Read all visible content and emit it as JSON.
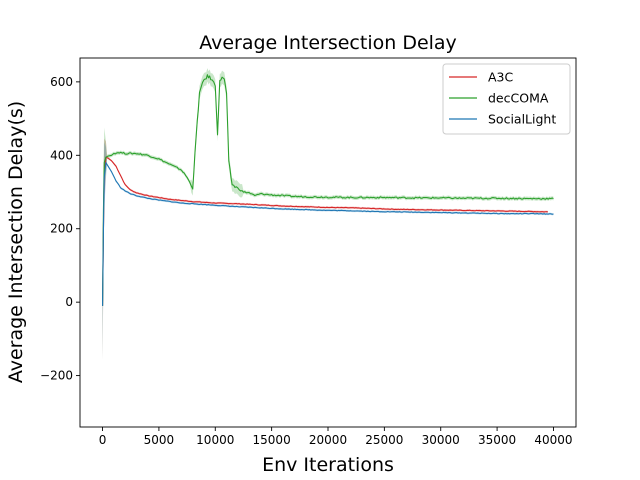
{
  "chart_data": {
    "type": "line",
    "title": "Average Intersection Delay",
    "xlabel": "Env Iterations",
    "ylabel": "Average Intersection Delay(s)",
    "xlim": [
      -2000,
      42000
    ],
    "ylim": [
      -340,
      665
    ],
    "xticks": [
      0,
      5000,
      10000,
      15000,
      20000,
      25000,
      30000,
      35000,
      40000
    ],
    "yticks": [
      -200,
      0,
      200,
      400,
      600
    ],
    "legend_position": "upper right",
    "series": [
      {
        "name": "A3C",
        "color": "#d62728",
        "x": [
          0,
          80,
          150,
          300,
          500,
          800,
          1200,
          1600,
          2000,
          2500,
          3000,
          4000,
          5000,
          6000,
          7000,
          8000,
          9000,
          10000,
          12000,
          14000,
          16000,
          18000,
          20000,
          22000,
          24000,
          26000,
          28000,
          30000,
          32000,
          34000,
          36000,
          38000,
          39500
        ],
        "y": [
          -10,
          200,
          350,
          395,
          392,
          385,
          370,
          345,
          320,
          305,
          298,
          290,
          285,
          280,
          277,
          274,
          272,
          270,
          268,
          265,
          262,
          260,
          258,
          257,
          255,
          253,
          252,
          251,
          250,
          249,
          248,
          247,
          246
        ]
      },
      {
        "name": "decCOMA",
        "color": "#2ca02c",
        "x": [
          0,
          80,
          150,
          300,
          500,
          800,
          1000,
          1500,
          2000,
          3000,
          4000,
          5000,
          6000,
          7000,
          7500,
          8000,
          8300,
          8600,
          9000,
          9300,
          9600,
          10000,
          10200,
          10400,
          10600,
          10800,
          11000,
          11200,
          11500,
          12000,
          12500,
          13000,
          13500,
          14000,
          15000,
          16000,
          17000,
          18000,
          20000,
          22000,
          25000,
          28000,
          30000,
          32000,
          35000,
          38000,
          40000
        ],
        "y": [
          -10,
          250,
          380,
          395,
          398,
          400,
          405,
          408,
          405,
          405,
          400,
          390,
          375,
          360,
          340,
          310,
          450,
          570,
          605,
          615,
          610,
          590,
          460,
          600,
          615,
          605,
          570,
          380,
          320,
          310,
          300,
          298,
          290,
          295,
          292,
          290,
          288,
          287,
          286,
          285,
          285,
          284,
          284,
          283,
          283,
          282,
          282
        ]
      },
      {
        "name": "SocialLight",
        "color": "#1f77b4",
        "x": [
          0,
          80,
          150,
          300,
          500,
          800,
          1200,
          1600,
          2000,
          2500,
          3000,
          4000,
          5000,
          6000,
          7000,
          8000,
          9000,
          10000,
          12000,
          14000,
          16000,
          18000,
          20000,
          22000,
          24000,
          26000,
          28000,
          30000,
          32000,
          34000,
          36000,
          38000,
          40000
        ],
        "y": [
          -10,
          200,
          340,
          380,
          370,
          355,
          330,
          312,
          303,
          295,
          290,
          283,
          278,
          274,
          270,
          268,
          266,
          264,
          260,
          257,
          254,
          252,
          250,
          249,
          247,
          246,
          245,
          244,
          243,
          242,
          241,
          241,
          240
        ]
      }
    ]
  }
}
